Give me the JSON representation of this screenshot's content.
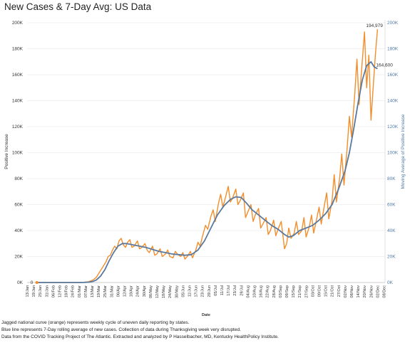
{
  "title": "New Cases & 7-Day Avg:  US Data",
  "footnotes": [
    "Jagged national curve (orange) represents weekly cycle of uneven daily reporting by states.",
    "Blue line represents 7-Day rolling average of new cases. Collection of data during Thanksgiving week very disrupted.",
    "Data from the COVID Tracking Project of The Atlantic.  Extracted and analyzed by P Hasselbacher, MD, Kentucky HealthPolicy Institute."
  ],
  "colors": {
    "daily": "#f28e2b",
    "avg": "#59799e",
    "grid": "#ececec",
    "right_axis": "#4e79a7",
    "text": "#333333"
  },
  "chart_data": {
    "type": "line",
    "xlabel": "Date",
    "ylabel_left": "Positive Increase",
    "ylabel_right": "Moving Average of Positive Increase",
    "ylim": [
      0,
      200000
    ],
    "yticks": [
      "0K",
      "20K",
      "40K",
      "60K",
      "80K",
      "100K",
      "120K",
      "140K",
      "160K",
      "180K",
      "200K"
    ],
    "yticks_right": [
      "0K",
      "20K",
      "40K",
      "60K",
      "80K",
      "100K",
      "120K",
      "140K",
      "160K",
      "180K",
      "200K"
    ],
    "grid": true,
    "x_start": "2020-01-13",
    "x_end": "2020-12-09",
    "xticks": [
      "13/Jan",
      "19/Jan",
      "25/Jan",
      "31/Jan",
      "06/Feb",
      "12/Feb",
      "18/Feb",
      "24/Feb",
      "01/Mar",
      "07/Mar",
      "13/Mar",
      "19/Mar",
      "25/Mar",
      "31/Mar",
      "06/Apr",
      "12/Apr",
      "18/Apr",
      "24/Apr",
      "30/Apr",
      "06/May",
      "12/May",
      "18/May",
      "24/May",
      "30/May",
      "05/Jun",
      "11/Jun",
      "17/Jun",
      "23/Jun",
      "29/Jun",
      "05/Jul",
      "11/Jul",
      "17/Jul",
      "23/Jul",
      "29/Jul",
      "04/Aug",
      "10/Aug",
      "16/Aug",
      "22/Aug",
      "28/Aug",
      "03/Sep",
      "09/Sep",
      "15/Sep",
      "21/Sep",
      "27/Sep",
      "03/Oct",
      "09/Oct",
      "15/Oct",
      "21/Oct",
      "27/Oct",
      "02/Nov",
      "08/Nov",
      "14/Nov",
      "20/Nov",
      "26/Nov",
      "02/Dec",
      "08/Dec"
    ],
    "series": [
      {
        "name": "Positive Increase",
        "points": [
          [
            "2020-01-22",
            0
          ],
          [
            "2020-02-29",
            0
          ],
          [
            "2020-03-06",
            200
          ],
          [
            "2020-03-10",
            600
          ],
          [
            "2020-03-14",
            2000
          ],
          [
            "2020-03-17",
            4000
          ],
          [
            "2020-03-20",
            8000
          ],
          [
            "2020-03-23",
            12000
          ],
          [
            "2020-03-26",
            16000
          ],
          [
            "2020-03-28",
            20000
          ],
          [
            "2020-03-30",
            21000
          ],
          [
            "2020-04-01",
            25000
          ],
          [
            "2020-04-03",
            28000
          ],
          [
            "2020-04-05",
            26000
          ],
          [
            "2020-04-07",
            32000
          ],
          [
            "2020-04-09",
            34000
          ],
          [
            "2020-04-11",
            29000
          ],
          [
            "2020-04-13",
            27000
          ],
          [
            "2020-04-15",
            31000
          ],
          [
            "2020-04-17",
            33000
          ],
          [
            "2020-04-19",
            27000
          ],
          [
            "2020-04-21",
            28000
          ],
          [
            "2020-04-24",
            32000
          ],
          [
            "2020-04-26",
            26000
          ],
          [
            "2020-04-28",
            27000
          ],
          [
            "2020-05-01",
            30000
          ],
          [
            "2020-05-03",
            25000
          ],
          [
            "2020-05-05",
            23000
          ],
          [
            "2020-05-08",
            28000
          ],
          [
            "2020-05-10",
            21000
          ],
          [
            "2020-05-12",
            22000
          ],
          [
            "2020-05-15",
            26000
          ],
          [
            "2020-05-17",
            20000
          ],
          [
            "2020-05-20",
            22000
          ],
          [
            "2020-05-22",
            25000
          ],
          [
            "2020-05-24",
            20000
          ],
          [
            "2020-05-27",
            19000
          ],
          [
            "2020-05-29",
            24000
          ],
          [
            "2020-05-31",
            22000
          ],
          [
            "2020-06-03",
            20000
          ],
          [
            "2020-06-05",
            23000
          ],
          [
            "2020-06-07",
            18000
          ],
          [
            "2020-06-10",
            21000
          ],
          [
            "2020-06-12",
            24000
          ],
          [
            "2020-06-14",
            19000
          ],
          [
            "2020-06-17",
            25000
          ],
          [
            "2020-06-19",
            31000
          ],
          [
            "2020-06-21",
            28000
          ],
          [
            "2020-06-23",
            35000
          ],
          [
            "2020-06-26",
            44000
          ],
          [
            "2020-06-28",
            41000
          ],
          [
            "2020-07-01",
            51000
          ],
          [
            "2020-07-03",
            56000
          ],
          [
            "2020-07-05",
            47000
          ],
          [
            "2020-07-08",
            61000
          ],
          [
            "2020-07-10",
            68000
          ],
          [
            "2020-07-12",
            58000
          ],
          [
            "2020-07-14",
            64000
          ],
          [
            "2020-07-17",
            74000
          ],
          [
            "2020-07-19",
            62000
          ],
          [
            "2020-07-21",
            65000
          ],
          [
            "2020-07-24",
            72000
          ],
          [
            "2020-07-26",
            60000
          ],
          [
            "2020-07-28",
            63000
          ],
          [
            "2020-07-31",
            69000
          ],
          [
            "2020-08-02",
            50000
          ],
          [
            "2020-08-04",
            54000
          ],
          [
            "2020-08-07",
            60000
          ],
          [
            "2020-08-09",
            47000
          ],
          [
            "2020-08-11",
            52000
          ],
          [
            "2020-08-14",
            57000
          ],
          [
            "2020-08-16",
            42000
          ],
          [
            "2020-08-18",
            45000
          ],
          [
            "2020-08-21",
            50000
          ],
          [
            "2020-08-23",
            37000
          ],
          [
            "2020-08-25",
            40000
          ],
          [
            "2020-08-28",
            48000
          ],
          [
            "2020-08-30",
            36000
          ],
          [
            "2020-09-01",
            41000
          ],
          [
            "2020-09-04",
            47000
          ],
          [
            "2020-09-07",
            26000
          ],
          [
            "2020-09-09",
            30000
          ],
          [
            "2020-09-11",
            42000
          ],
          [
            "2020-09-13",
            34000
          ],
          [
            "2020-09-16",
            38000
          ],
          [
            "2020-09-18",
            47000
          ],
          [
            "2020-09-20",
            37000
          ],
          [
            "2020-09-23",
            40000
          ],
          [
            "2020-09-25",
            50000
          ],
          [
            "2020-09-27",
            35000
          ],
          [
            "2020-09-30",
            43000
          ],
          [
            "2020-10-02",
            52000
          ],
          [
            "2020-10-04",
            38000
          ],
          [
            "2020-10-07",
            50000
          ],
          [
            "2020-10-09",
            58000
          ],
          [
            "2020-10-11",
            45000
          ],
          [
            "2020-10-14",
            60000
          ],
          [
            "2020-10-16",
            69000
          ],
          [
            "2020-10-18",
            49000
          ],
          [
            "2020-10-21",
            63000
          ],
          [
            "2020-10-23",
            83000
          ],
          [
            "2020-10-25",
            62000
          ],
          [
            "2020-10-28",
            80000
          ],
          [
            "2020-10-30",
            99000
          ],
          [
            "2020-11-01",
            75000
          ],
          [
            "2020-11-04",
            104000
          ],
          [
            "2020-11-06",
            128000
          ],
          [
            "2020-11-08",
            112000
          ],
          [
            "2020-11-11",
            145000
          ],
          [
            "2020-11-13",
            172000
          ],
          [
            "2020-11-15",
            137000
          ],
          [
            "2020-11-17",
            160000
          ],
          [
            "2020-11-20",
            193000
          ],
          [
            "2020-11-22",
            150000
          ],
          [
            "2020-11-24",
            175000
          ],
          [
            "2020-11-26",
            125000
          ],
          [
            "2020-11-28",
            150000
          ],
          [
            "2020-11-30",
            175000
          ],
          [
            "2020-12-02",
            194979
          ]
        ]
      },
      {
        "name": "Moving Average of Positive Increase",
        "points": [
          [
            "2020-01-22",
            0
          ],
          [
            "2020-02-29",
            0
          ],
          [
            "2020-03-06",
            100
          ],
          [
            "2020-03-10",
            300
          ],
          [
            "2020-03-14",
            900
          ],
          [
            "2020-03-17",
            2000
          ],
          [
            "2020-03-21",
            5000
          ],
          [
            "2020-03-25",
            10000
          ],
          [
            "2020-03-29",
            17000
          ],
          [
            "2020-04-02",
            23000
          ],
          [
            "2020-04-06",
            28000
          ],
          [
            "2020-04-10",
            30000
          ],
          [
            "2020-04-14",
            30000
          ],
          [
            "2020-04-20",
            29000
          ],
          [
            "2020-04-26",
            28000
          ],
          [
            "2020-05-02",
            27000
          ],
          [
            "2020-05-08",
            25500
          ],
          [
            "2020-05-14",
            24000
          ],
          [
            "2020-05-20",
            23000
          ],
          [
            "2020-05-26",
            22000
          ],
          [
            "2020-06-01",
            21500
          ],
          [
            "2020-06-07",
            21000
          ],
          [
            "2020-06-13",
            21500
          ],
          [
            "2020-06-19",
            25000
          ],
          [
            "2020-06-25",
            32000
          ],
          [
            "2020-07-01",
            42000
          ],
          [
            "2020-07-07",
            52000
          ],
          [
            "2020-07-13",
            59000
          ],
          [
            "2020-07-19",
            64000
          ],
          [
            "2020-07-24",
            66000
          ],
          [
            "2020-07-29",
            65500
          ],
          [
            "2020-08-03",
            61000
          ],
          [
            "2020-08-08",
            56000
          ],
          [
            "2020-08-14",
            52000
          ],
          [
            "2020-08-20",
            48000
          ],
          [
            "2020-08-26",
            44000
          ],
          [
            "2020-09-01",
            41000
          ],
          [
            "2020-09-07",
            37000
          ],
          [
            "2020-09-11",
            35000
          ],
          [
            "2020-09-15",
            36000
          ],
          [
            "2020-09-21",
            40000
          ],
          [
            "2020-09-27",
            42000
          ],
          [
            "2020-10-03",
            44000
          ],
          [
            "2020-10-09",
            48000
          ],
          [
            "2020-10-15",
            53000
          ],
          [
            "2020-10-21",
            60000
          ],
          [
            "2020-10-27",
            72000
          ],
          [
            "2020-11-02",
            86000
          ],
          [
            "2020-11-06",
            100000
          ],
          [
            "2020-11-10",
            118000
          ],
          [
            "2020-11-14",
            138000
          ],
          [
            "2020-11-18",
            156000
          ],
          [
            "2020-11-22",
            167000
          ],
          [
            "2020-11-26",
            170000
          ],
          [
            "2020-11-29",
            166000
          ],
          [
            "2020-12-02",
            164600
          ]
        ]
      }
    ],
    "annotations": [
      {
        "date": "2020-12-02",
        "value": 194979,
        "label": "194,979"
      },
      {
        "date": "2020-12-02",
        "value": 164600,
        "label": "164,600"
      },
      {
        "date": "2020-01-22",
        "value": 0,
        "label": "0"
      }
    ]
  }
}
